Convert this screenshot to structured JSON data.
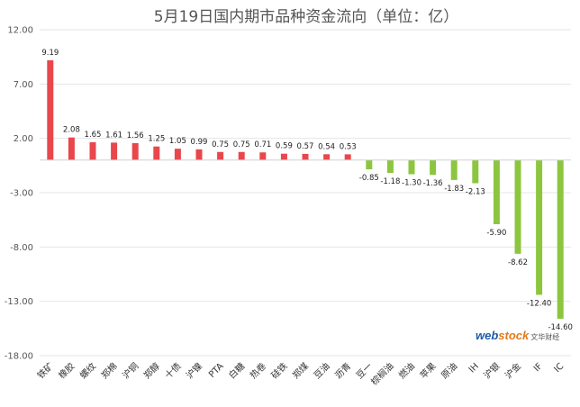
{
  "chart_data": {
    "type": "bar",
    "title": "5月19日国内期市品种资金流向（单位：亿）",
    "ylim": [
      -18,
      12
    ],
    "yticks": [
      "12.00",
      "7.00",
      "2.00",
      "-3.00",
      "-8.00",
      "-13.00",
      "-18.00"
    ],
    "grid": true,
    "categories": [
      "铁矿",
      "橡胶",
      "螺纹",
      "郑棉",
      "沪铜",
      "郑醇",
      "十债",
      "沪镍",
      "PTA",
      "白糖",
      "热卷",
      "硅铁",
      "郑煤",
      "豆油",
      "沥青",
      "豆一",
      "棕榈油",
      "燃油",
      "苹果",
      "原油",
      "IH",
      "沪银",
      "沪金",
      "IF",
      "IC"
    ],
    "values": [
      9.19,
      2.08,
      1.65,
      1.61,
      1.56,
      1.25,
      1.05,
      0.99,
      0.75,
      0.75,
      0.71,
      0.59,
      0.57,
      0.54,
      0.53,
      -0.85,
      -1.18,
      -1.3,
      -1.36,
      -1.83,
      -2.13,
      -5.9,
      -8.62,
      -12.4,
      -14.6
    ],
    "labels": [
      "9.19",
      "2.08",
      "1.65",
      "1.61",
      "1.56",
      "1.25",
      "1.05",
      "0.99",
      "0.75",
      "0.75",
      "0.71",
      "0.59",
      "0.57",
      "0.54",
      "0.53",
      "-0.85",
      "-1.18",
      "-1.30",
      "-1.36",
      "-1.83",
      "-2.13",
      "-5.90",
      "-8.62",
      "-12.40",
      "-14.60"
    ],
    "colors": {
      "positive": "#e8474c",
      "negative": "#8cc63e"
    }
  },
  "watermark": {
    "brand_a": "web",
    "brand_b": "stock",
    "cn": "文华财经"
  }
}
